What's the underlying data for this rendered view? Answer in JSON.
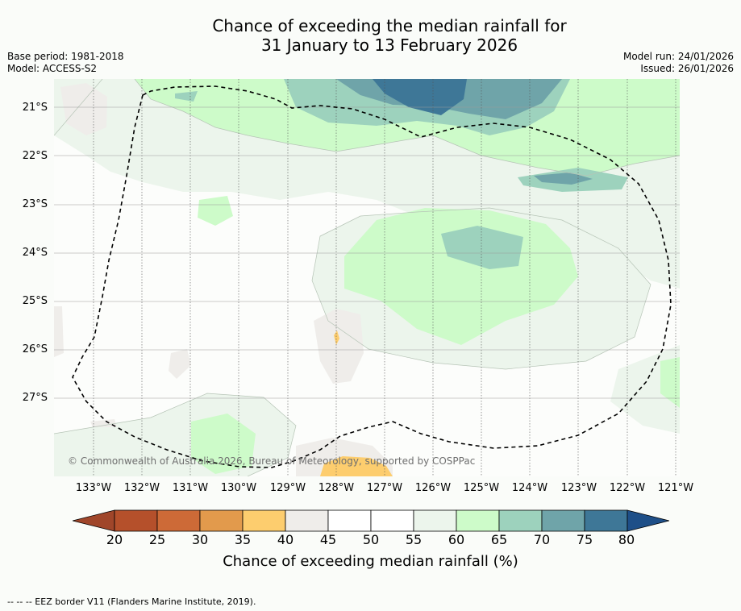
{
  "title": {
    "line1": "Chance of exceeding the median rainfall for",
    "line2": "31 January to 13 February 2026"
  },
  "meta": {
    "base_period": "Base period: 1981-2018",
    "model": "Model: ACCESS-S2",
    "model_run": "Model run: 24/01/2026",
    "issued": "Issued: 26/01/2026"
  },
  "map": {
    "lat_labels": [
      "21°S",
      "22°S",
      "23°S",
      "24°S",
      "25°S",
      "26°S",
      "27°S"
    ],
    "lon_labels": [
      "133°W",
      "132°W",
      "131°W",
      "130°W",
      "129°W",
      "128°W",
      "127°W",
      "126°W",
      "125°W",
      "124°W",
      "123°W",
      "122°W",
      "121°W"
    ],
    "copyright": "© Commonwealth of Australia 2026, Bureau of Meteorology, supported by COSPPac"
  },
  "colorbar": {
    "ticks": [
      "20",
      "25",
      "30",
      "35",
      "40",
      "45",
      "50",
      "55",
      "60",
      "65",
      "70",
      "75",
      "80"
    ],
    "label": "Chance of exceeding median rainfall (%)",
    "colors": [
      "#a0462a",
      "#b5502b",
      "#cd6a37",
      "#e29a4c",
      "#fdcd6e",
      "#efedea",
      "#ffffff",
      "#ffffff",
      "#ecf5ec",
      "#cdfbc9",
      "#9dd2bd",
      "#6fa4a9",
      "#3e7797",
      "#1e4f88"
    ]
  },
  "footer": "--  --  -- EEZ border V11 (Flanders Marine Institute, 2019)."
}
